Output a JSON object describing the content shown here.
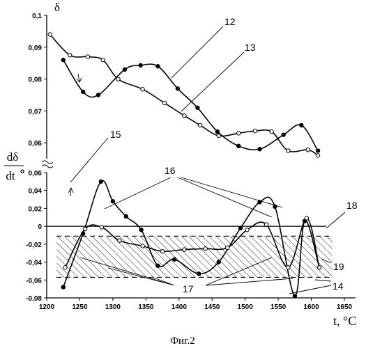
{
  "chart_data": {
    "type": "line",
    "caption": "Фиг.2",
    "x_axis": {
      "label": "t, °C",
      "ticks": [
        1200,
        1250,
        1300,
        1350,
        1400,
        1450,
        1500,
        1550,
        1600,
        1650
      ],
      "tick_labels": [
        "1200",
        "1250",
        "1300",
        "1350",
        "1400",
        "1450",
        "1500",
        "1550",
        "1600",
        "1650"
      ],
      "range": [
        1200,
        1650
      ]
    },
    "upper_panel": {
      "ylabel": "δ",
      "ylim": [
        0.055,
        0.1
      ],
      "ticks": [
        0.06,
        0.07,
        0.08,
        0.09,
        0.1
      ],
      "tick_labels": [
        "0,06",
        "0,07",
        "0,08",
        "0,09",
        "0,1"
      ],
      "series": [
        {
          "callout": "12",
          "marker": "filled",
          "x": [
            1225,
            1255,
            1278,
            1318,
            1342,
            1368,
            1398,
            1428,
            1458,
            1490,
            1522,
            1558,
            1585,
            1610
          ],
          "y": [
            0.086,
            0.076,
            0.075,
            0.083,
            0.0843,
            0.084,
            0.077,
            0.071,
            0.0635,
            0.059,
            0.058,
            0.0625,
            0.0655,
            0.0575
          ]
        },
        {
          "callout": "13",
          "marker": "open",
          "x": [
            1205,
            1235,
            1262,
            1285,
            1308,
            1345,
            1378,
            1408,
            1432,
            1460,
            1490,
            1515,
            1540,
            1565,
            1595,
            1610
          ],
          "y": [
            0.094,
            0.0875,
            0.087,
            0.086,
            0.08,
            0.0768,
            0.0725,
            0.0685,
            0.0655,
            0.0622,
            0.063,
            0.0637,
            0.0635,
            0.0575,
            0.0578,
            0.056
          ]
        }
      ]
    },
    "lower_panel": {
      "ylabel_num": "dδ",
      "ylabel_den": "dt",
      "ylabel_sup": "o",
      "ylim": [
        -0.08,
        0.06
      ],
      "ticks": [
        0.06,
        0.04,
        0.02,
        0,
        -0.02,
        -0.04,
        -0.06,
        -0.08
      ],
      "tick_labels": [
        "0,06",
        "0,04",
        "0,02",
        "0",
        "-0,02",
        "-0,04",
        "-0,06",
        "-0,08"
      ],
      "series": [
        {
          "callout": "16",
          "marker": "filled",
          "x": [
            1225,
            1255,
            1282,
            1300,
            1320,
            1343,
            1368,
            1393,
            1430,
            1460,
            1493,
            1522,
            1545,
            1575,
            1590,
            1612
          ],
          "y": [
            -0.068,
            -0.008,
            0.05,
            0.028,
            0.011,
            -0.004,
            -0.044,
            -0.037,
            -0.053,
            -0.04,
            -0.002,
            0.027,
            0.022,
            -0.078,
            0.006,
            -0.046
          ]
        },
        {
          "callout": "16",
          "marker": "open",
          "x": [
            1228,
            1258,
            1283,
            1310,
            1345,
            1375,
            1408,
            1440,
            1473,
            1503,
            1532,
            1565,
            1593,
            1612
          ],
          "y": [
            -0.046,
            -0.003,
            -0.001,
            -0.016,
            -0.022,
            -0.028,
            -0.026,
            -0.025,
            -0.024,
            -0.004,
            0.002,
            -0.046,
            0.009,
            -0.046
          ]
        }
      ],
      "zero_line": {
        "callout": "18",
        "y": 0
      },
      "band": {
        "callout": "19",
        "y_top": -0.011,
        "y_bottom": -0.057,
        "x_from": 1215,
        "x_to": 1632,
        "style": "hatched"
      }
    },
    "callout_labels": [
      "12",
      "13",
      "14",
      "15",
      "16",
      "17",
      "18",
      "19"
    ]
  }
}
